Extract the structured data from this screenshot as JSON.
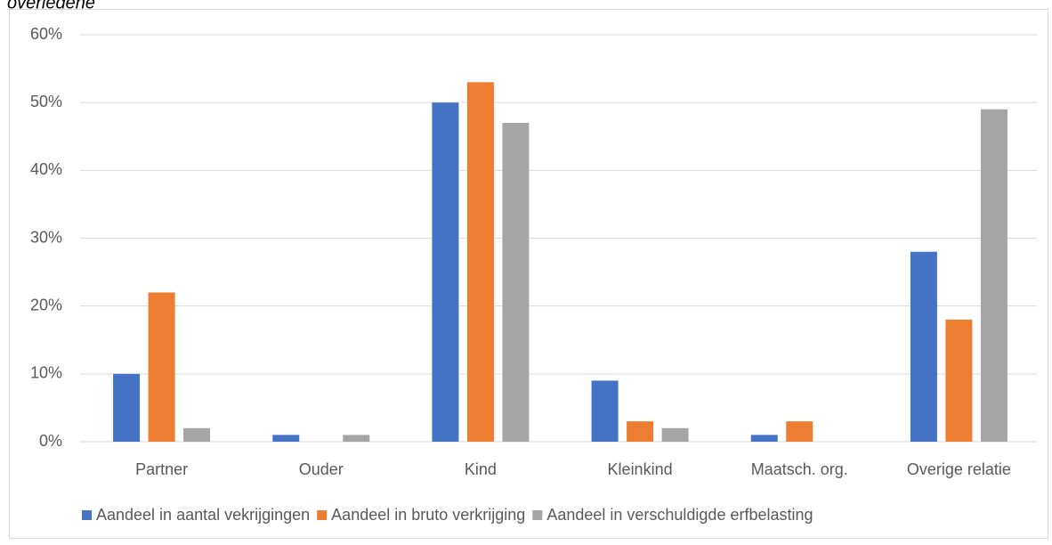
{
  "chart_data": {
    "type": "bar",
    "title": "overledene",
    "categories": [
      "Partner",
      "Ouder",
      "Kind",
      "Kleinkind",
      "Maatsch. org.",
      "Overige relatie"
    ],
    "series": [
      {
        "name": "Aandeel in aantal vekrijgingen",
        "color": "#4472c4",
        "values": [
          10,
          1,
          50,
          9,
          1,
          28
        ]
      },
      {
        "name": "Aandeel in bruto verkrijging",
        "color": "#ed7d31",
        "values": [
          22,
          0,
          53,
          3,
          3,
          18
        ]
      },
      {
        "name": "Aandeel in verschuldigde erfbelasting",
        "color": "#a5a5a5",
        "values": [
          2,
          1,
          47,
          2,
          0,
          49
        ]
      }
    ],
    "ylim": [
      0,
      60
    ],
    "yticks": [
      {
        "value": 0,
        "label": "0%"
      },
      {
        "value": 10,
        "label": "10%"
      },
      {
        "value": 20,
        "label": "20%"
      },
      {
        "value": 30,
        "label": "30%"
      },
      {
        "value": 40,
        "label": "40%"
      },
      {
        "value": 50,
        "label": "50%"
      },
      {
        "value": 60,
        "label": "60%"
      }
    ],
    "grid": true,
    "legend": "bottom"
  }
}
